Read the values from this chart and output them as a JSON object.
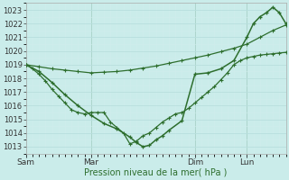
{
  "title": "",
  "xlabel": "Pression niveau de la mer( hPa )",
  "bg_color": "#caecea",
  "line_color": "#2d6e2d",
  "grid_major_color": "#b8dedd",
  "grid_minor_color": "#d0edec",
  "ylim": [
    1012.5,
    1023.5
  ],
  "yticks": [
    1013,
    1014,
    1015,
    1016,
    1017,
    1018,
    1019,
    1020,
    1021,
    1022,
    1023
  ],
  "xlim": [
    0,
    240
  ],
  "day_positions": [
    0,
    60,
    156,
    204
  ],
  "day_labels": [
    "Sam",
    "Mar",
    "Dim",
    "Lun"
  ],
  "line1_x": [
    0,
    12,
    24,
    36,
    48,
    60,
    72,
    84,
    96,
    108,
    120,
    132,
    144,
    156,
    168,
    180,
    192,
    204,
    216,
    228,
    240
  ],
  "line1_y": [
    1019.0,
    1018.85,
    1018.7,
    1018.6,
    1018.5,
    1018.4,
    1018.45,
    1018.5,
    1018.6,
    1018.75,
    1018.9,
    1019.1,
    1019.3,
    1019.5,
    1019.7,
    1019.95,
    1020.2,
    1020.5,
    1021.0,
    1021.5,
    1021.9
  ],
  "line2_x": [
    0,
    6,
    12,
    18,
    24,
    30,
    36,
    42,
    48,
    54,
    60,
    66,
    72,
    78,
    84,
    90,
    96,
    102,
    108,
    114,
    120,
    126,
    132,
    138,
    144,
    150,
    156,
    162,
    168,
    174,
    180,
    186,
    192,
    198,
    204,
    210,
    216,
    222,
    228,
    234,
    240
  ],
  "line2_y": [
    1019.0,
    1018.7,
    1018.3,
    1017.8,
    1017.2,
    1016.7,
    1016.2,
    1015.7,
    1015.5,
    1015.4,
    1015.5,
    1015.5,
    1015.5,
    1014.8,
    1014.4,
    1014.0,
    1013.2,
    1013.4,
    1013.8,
    1014.0,
    1014.4,
    1014.8,
    1015.1,
    1015.4,
    1015.5,
    1015.8,
    1016.2,
    1016.6,
    1017.0,
    1017.4,
    1017.9,
    1018.4,
    1019.0,
    1019.3,
    1019.5,
    1019.6,
    1019.7,
    1019.75,
    1019.8,
    1019.85,
    1019.9
  ],
  "line3_x": [
    0,
    12,
    24,
    36,
    48,
    60,
    72,
    84,
    96,
    102,
    108,
    114,
    120,
    126,
    132,
    144,
    156,
    168,
    180,
    192,
    204,
    210,
    216,
    222,
    228,
    234,
    240
  ],
  "line3_y": [
    1019.0,
    1018.5,
    1017.7,
    1016.8,
    1016.0,
    1015.3,
    1014.7,
    1014.3,
    1013.7,
    1013.3,
    1013.0,
    1013.1,
    1013.5,
    1013.8,
    1014.2,
    1014.9,
    1018.3,
    1018.4,
    1018.7,
    1019.3,
    1021.0,
    1022.0,
    1022.5,
    1022.8,
    1023.2,
    1022.8,
    1022.0
  ],
  "figwidth": 3.2,
  "figheight": 2.0,
  "dpi": 100
}
